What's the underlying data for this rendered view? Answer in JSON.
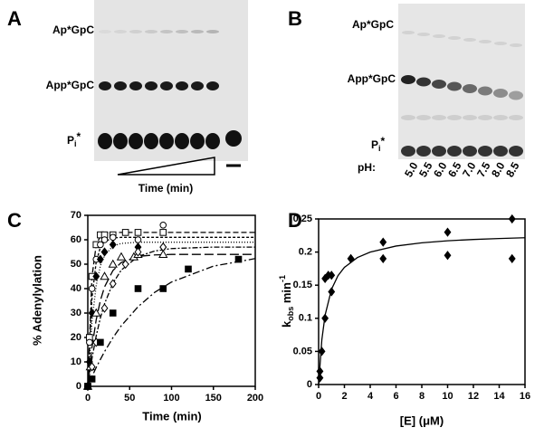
{
  "panels": [
    "A",
    "B",
    "C",
    "D"
  ],
  "gel_a": {
    "bands": [
      {
        "main": "Ap*GpC"
      },
      {
        "main": "App*GpC"
      },
      {
        "main": "P",
        "sub": "i",
        "sup": "*"
      }
    ],
    "x_label": "Time (min)"
  },
  "gel_b": {
    "bands": [
      {
        "main": "Ap*GpC"
      },
      {
        "main": "App*GpC"
      },
      {
        "main": "P",
        "sub": "i",
        "sup": "*"
      }
    ],
    "ph_label": "pH:",
    "ph_values": [
      "5.0",
      "5.5",
      "6.0",
      "6.5",
      "7.0",
      "7.5",
      "8.0",
      "8.5"
    ]
  },
  "chart_data": [
    {
      "type": "scatter",
      "x_label": "Time (min)",
      "y_label": {
        "main": "% Adenylylation"
      },
      "xlim": [
        0,
        200
      ],
      "xticks": [
        0,
        50,
        100,
        150,
        200
      ],
      "ylim": [
        0,
        70
      ],
      "yticks": [
        0,
        10,
        20,
        30,
        40,
        50,
        60,
        70
      ],
      "series": [
        {
          "marker": "open-square",
          "color": "#000000",
          "x": [
            0,
            2,
            5,
            10,
            15,
            20,
            30,
            45,
            60,
            90
          ],
          "values": [
            0,
            20,
            45,
            58,
            62,
            62,
            62,
            63,
            63,
            63
          ]
        },
        {
          "marker": "open-circle",
          "color": "#000000",
          "x": [
            0,
            2,
            5,
            10,
            15,
            20,
            30,
            60,
            90
          ],
          "values": [
            0,
            18,
            40,
            52,
            58,
            60,
            61,
            60,
            66
          ]
        },
        {
          "marker": "filled-diamond",
          "color": "#000000",
          "x": [
            0,
            2,
            5,
            10,
            15,
            20,
            30,
            60,
            90
          ],
          "values": [
            0,
            10,
            30,
            45,
            52,
            55,
            58,
            57,
            57
          ]
        },
        {
          "marker": "open-triangle",
          "color": "#000000",
          "x": [
            0,
            3,
            10,
            20,
            30,
            40,
            55,
            60,
            90
          ],
          "values": [
            0,
            8,
            30,
            45,
            50,
            53,
            53,
            54,
            54
          ]
        },
        {
          "marker": "open-diamond",
          "color": "#000000",
          "x": [
            0,
            5,
            10,
            20,
            30,
            45,
            60,
            90
          ],
          "values": [
            0,
            8,
            18,
            32,
            42,
            50,
            55,
            57
          ]
        },
        {
          "marker": "filled-square",
          "color": "#000000",
          "x": [
            0,
            5,
            15,
            30,
            60,
            90,
            120,
            180
          ],
          "values": [
            0,
            3,
            18,
            30,
            40,
            40,
            48,
            52
          ]
        }
      ],
      "fits": [
        {
          "dash": "6 3",
          "color": "#000000",
          "x": [
            0,
            5,
            10,
            15,
            20,
            30,
            40,
            60,
            80,
            100,
            150,
            200
          ],
          "values": [
            0,
            44.9,
            57.8,
            61.5,
            62.6,
            63,
            63,
            63,
            63,
            63,
            63,
            63
          ]
        },
        {
          "dash": "3 2",
          "color": "#000000",
          "x": [
            0,
            5,
            10,
            15,
            20,
            30,
            40,
            60,
            80,
            100,
            150,
            200
          ],
          "values": [
            0,
            36.2,
            50.9,
            56.9,
            59.3,
            60.7,
            61,
            61,
            61,
            61,
            61,
            61
          ]
        },
        {
          "dash": "1 2",
          "color": "#000000",
          "x": [
            0,
            5,
            10,
            15,
            20,
            30,
            40,
            60,
            80,
            100,
            150,
            200
          ],
          "values": [
            0,
            26.6,
            41.2,
            49.3,
            53.6,
            57.4,
            58.5,
            59,
            59,
            59,
            59,
            59
          ]
        },
        {
          "dash": "10 4",
          "color": "#000000",
          "x": [
            0,
            5,
            10,
            15,
            20,
            30,
            40,
            60,
            80,
            100,
            150,
            200
          ],
          "values": [
            0,
            15.9,
            27.2,
            35.1,
            40.7,
            47.4,
            50.7,
            53.2,
            53.8,
            54,
            54,
            54
          ]
        },
        {
          "dash": "2 2 6 2",
          "color": "#000000",
          "x": [
            0,
            5,
            10,
            15,
            20,
            30,
            40,
            60,
            80,
            100,
            150,
            200
          ],
          "values": [
            0,
            11.4,
            20.6,
            28,
            33.8,
            42.2,
            47.6,
            53.2,
            55.4,
            56.4,
            57,
            57
          ]
        },
        {
          "dash": "8 3 2 3",
          "color": "#000000",
          "x": [
            0,
            5,
            10,
            15,
            20,
            30,
            40,
            60,
            80,
            100,
            150,
            200
          ],
          "values": [
            0,
            4,
            7.7,
            11,
            14.2,
            19.9,
            24.8,
            32.6,
            38.5,
            42.7,
            49.2,
            52.3
          ]
        }
      ]
    },
    {
      "type": "scatter",
      "x_label": "[E] (μM)",
      "y_label": {
        "main": "k",
        "sub": "obs",
        "rest": " min",
        "sup": "-1"
      },
      "xlim": [
        0,
        16
      ],
      "xticks": [
        0,
        2,
        4,
        6,
        8,
        10,
        12,
        14,
        16
      ],
      "ylim": [
        0,
        0.25
      ],
      "yticks": [
        0,
        0.05,
        0.1,
        0.15,
        0.2,
        0.25
      ],
      "series": [
        {
          "marker": "filled-diamond",
          "color": "#000000",
          "x": [
            0.1,
            0.1,
            0.25,
            0.5,
            0.5,
            0.75,
            1,
            1,
            2.5,
            2.5,
            5,
            5,
            10,
            10,
            15,
            15
          ],
          "values": [
            0.01,
            0.02,
            0.05,
            0.1,
            0.16,
            0.165,
            0.14,
            0.165,
            0.19,
            0.19,
            0.215,
            0.19,
            0.23,
            0.195,
            0.25,
            0.19
          ]
        }
      ],
      "fits": [
        {
          "dash": "none",
          "color": "#000000",
          "x": [
            0,
            0.25,
            0.5,
            1,
            1.5,
            2,
            3,
            4,
            6,
            8,
            10,
            12,
            14,
            16
          ],
          "values": [
            0,
            0.0676,
            0.1045,
            0.1438,
            0.1643,
            0.1769,
            0.1917,
            0.2,
            0.2091,
            0.214,
            0.217,
            0.219,
            0.2205,
            0.2217
          ]
        }
      ]
    }
  ]
}
